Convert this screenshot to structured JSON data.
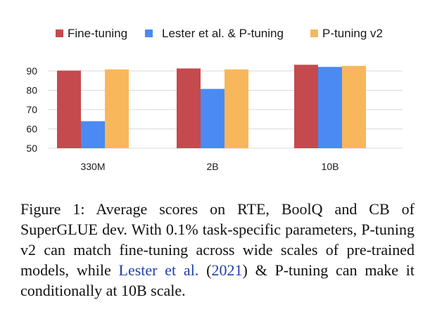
{
  "colors": {
    "fine_tuning": "#c44a4e",
    "lester_ptuning": "#4a8af2",
    "ptuning_v2": "#f8b75a",
    "grid": "#d9d9d9"
  },
  "chart_data": {
    "type": "bar",
    "categories": [
      "330M",
      "2B",
      "10B"
    ],
    "series": [
      {
        "name": "Fine-tuning",
        "values": [
          90.2,
          91.3,
          93.2
        ]
      },
      {
        "name": "Lester et al. & P-tuning",
        "values": [
          64.0,
          80.7,
          92.1
        ]
      },
      {
        "name": "P-tuning v2",
        "values": [
          90.8,
          90.8,
          92.6
        ]
      }
    ],
    "yticks": [
      50,
      60,
      70,
      80,
      90
    ],
    "ylim": [
      50,
      100
    ],
    "grid": true,
    "legend": "top"
  },
  "caption": {
    "figure_label": "Figure 1:",
    "text_part1": "Average scores on RTE, BoolQ and CB of SuperGLUE dev. With 0.1% task-specific parameters, P-tuning v2 can match fine-tuning across wide scales of pre-trained models, while",
    "ref_author": "Lester et al.",
    "ref_open": "(",
    "ref_year": "2021",
    "ref_close": ")",
    "text_part2": "& P-tuning can make it conditionally at 10B scale."
  }
}
